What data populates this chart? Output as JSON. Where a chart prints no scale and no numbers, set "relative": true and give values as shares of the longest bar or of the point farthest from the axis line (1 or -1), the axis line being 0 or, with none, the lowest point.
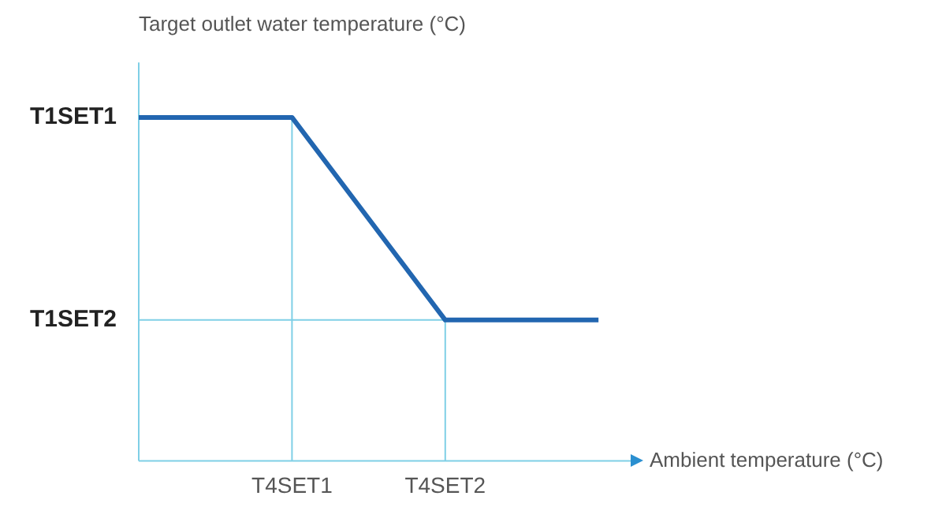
{
  "chart_data": {
    "type": "line",
    "ylabel": "Target outlet water temperature (°C)",
    "categories": [
      null,
      "T4SET1",
      "T4SET2",
      null
    ],
    "series": [
      {
        "color": "#2266b0",
        "values": [
          1,
          1,
          0.41,
          0.41
        ]
      }
    ],
    "relative": true,
    "ref_lines": [
      {
        "axis": "y",
        "value": 0.41,
        "label": "T1SET2",
        "color": "#7fcfe6"
      },
      {
        "axis": "x",
        "value": "T4SET1",
        "color": "#7fcfe6"
      },
      {
        "axis": "x",
        "value": "T4SET2",
        "color": "#7fcfe6"
      }
    ],
    "annotations": [
      "Ambient temperature (°C)",
      "T1SET1"
    ],
    "marker": "none",
    "line_style": "solid"
  }
}
